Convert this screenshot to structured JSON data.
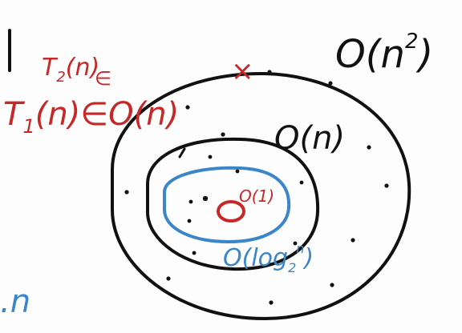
{
  "colors": {
    "ink_black": "#111111",
    "ink_red": "#c62828",
    "ink_blue": "#3a86c8",
    "background": "#fdfdfd"
  },
  "labels": {
    "big_o_n_squared": {
      "base": "O(n",
      "exponent": "2",
      "close": ")"
    },
    "big_o_n": "O(n)",
    "big_o_log_n": {
      "base": "O(log",
      "subscript": "2",
      "superscript": "n",
      "close": ")"
    },
    "big_o_1": "O(1)",
    "t2_line": {
      "name": "T",
      "subscript": "2",
      "arg": "(n)",
      "element_of": "∈"
    },
    "t1_line": {
      "name": "T",
      "subscript": "1",
      "arg": "(n)",
      "element_of": "∈",
      "set": "O(n)"
    },
    "red_cross": "×",
    "left_edge_text": ".n"
  }
}
